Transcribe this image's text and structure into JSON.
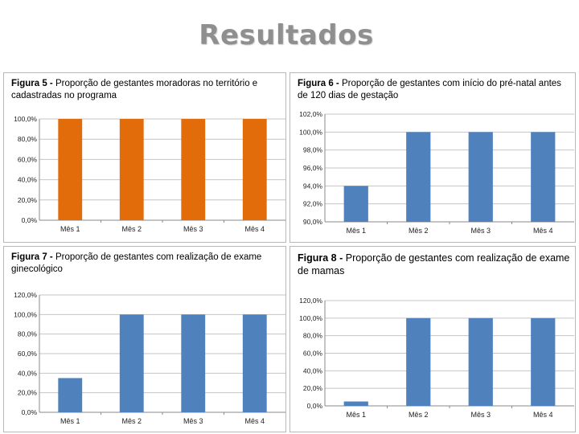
{
  "slide": {
    "title": "Resultados"
  },
  "chart_data": [
    {
      "type": "bar",
      "figure_label": "Figura 5 -",
      "title": "Proporção de gestantes moradoras no território e cadastradas no programa",
      "categories": [
        "Mês 1",
        "Mês 2",
        "Mês 3",
        "Mês 4"
      ],
      "values": [
        100,
        100,
        100,
        100
      ],
      "ylim": [
        0,
        100
      ],
      "yticks": [
        0,
        20,
        40,
        60,
        80,
        100
      ],
      "ytick_labels": [
        "0,0%",
        "20,0%",
        "40,0%",
        "60,0%",
        "80,0%",
        "100,0%"
      ],
      "color": "#e36c0a",
      "grid": true,
      "xlabel": "",
      "ylabel": ""
    },
    {
      "type": "bar",
      "figure_label": "Figura 6 -",
      "title": "Proporção de gestantes com início do pré-natal antes de 120 dias de gestação",
      "categories": [
        "Mês 1",
        "Mês 2",
        "Mês 3",
        "Mês 4"
      ],
      "values": [
        94,
        100,
        100,
        100
      ],
      "ylim": [
        90,
        102
      ],
      "yticks": [
        90,
        92,
        94,
        96,
        98,
        100,
        102
      ],
      "ytick_labels": [
        "90,0%",
        "92,0%",
        "94,0%",
        "96,0%",
        "98,0%",
        "100,0%",
        "102,0%"
      ],
      "color": "#4f81bd",
      "grid": true,
      "xlabel": "",
      "ylabel": ""
    },
    {
      "type": "bar",
      "figure_label": "Figura 7 -",
      "title": "Proporção de gestantes com realização de exame ginecológico",
      "categories": [
        "Mês 1",
        "Mês 2",
        "Mês 3",
        "Mês 4"
      ],
      "values": [
        35,
        100,
        100,
        100
      ],
      "ylim": [
        0,
        120
      ],
      "yticks": [
        0,
        20,
        40,
        60,
        80,
        100,
        120
      ],
      "ytick_labels": [
        "0,0%",
        "20,0%",
        "40,0%",
        "60,0%",
        "80,0%",
        "100,0%",
        "120,0%"
      ],
      "color": "#4f81bd",
      "grid": true,
      "xlabel": "",
      "ylabel": ""
    },
    {
      "type": "bar",
      "figure_label": "Figura 8 -",
      "title": "Proporção de gestantes com realização de exame de mamas",
      "categories": [
        "Mês 1",
        "Mês 2",
        "Mês 3",
        "Mês 4"
      ],
      "values": [
        5,
        100,
        100,
        100
      ],
      "ylim": [
        0,
        120
      ],
      "yticks": [
        0,
        20,
        40,
        60,
        80,
        100,
        120
      ],
      "ytick_labels": [
        "0,0%",
        "20,0%",
        "40,0%",
        "60,0%",
        "80,0%",
        "100,0%",
        "120,0%"
      ],
      "color": "#4f81bd",
      "grid": true,
      "xlabel": "",
      "ylabel": ""
    }
  ]
}
